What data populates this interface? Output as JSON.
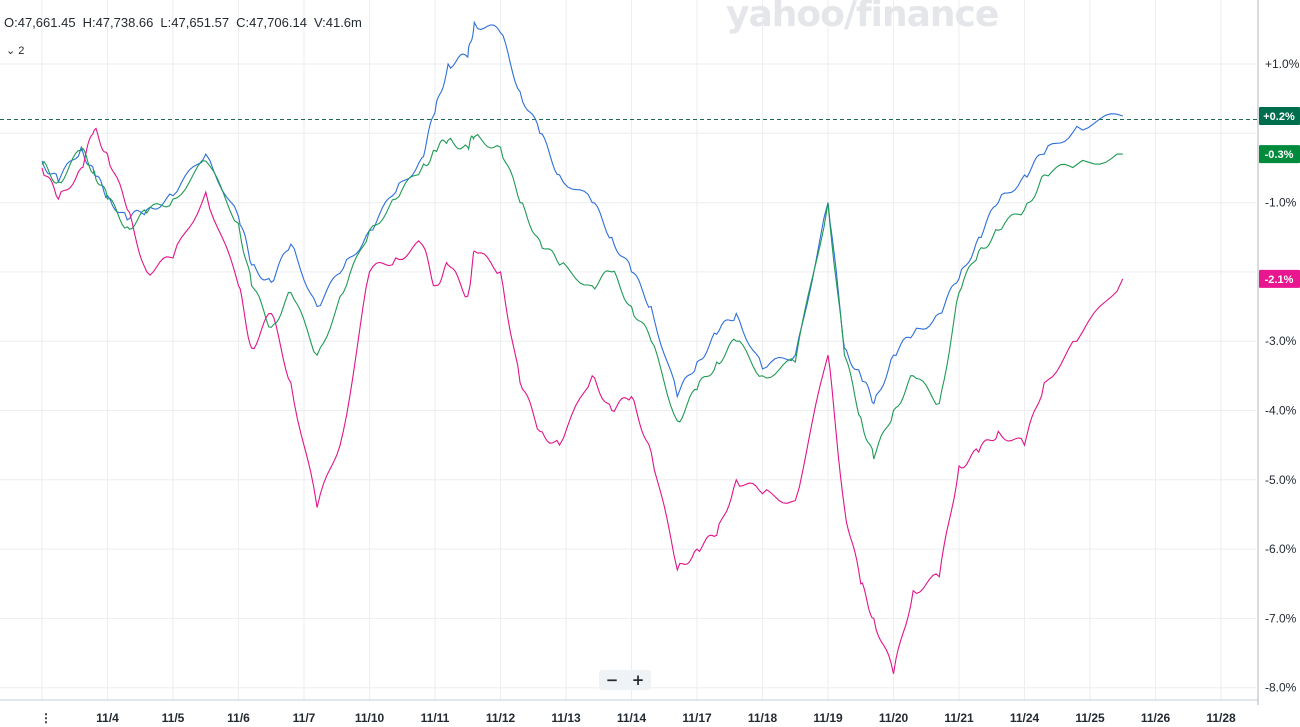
{
  "header": {
    "open": "O:47,661.45",
    "high": "H:47,738.66",
    "low": "L:47,651.57",
    "close": "C:47,706.14",
    "volume": "V:41.6m",
    "legend_toggle": "⌄ 2",
    "watermark": "yahoo/finance"
  },
  "zoom": {
    "minus": "−",
    "plus": "+"
  },
  "chart_data": {
    "type": "line",
    "ylim": [
      -8.2,
      1.7
    ],
    "y_ticks": [
      1.0,
      -1.0,
      -3.0,
      -4.0,
      -5.0,
      -6.0,
      -7.0,
      -8.0
    ],
    "y_tick_labels": [
      "+1.0%",
      "-1.0%",
      "-3.0%",
      "-4.0%",
      "-5.0%",
      "-6.0%",
      "-7.0%",
      "-8.0%"
    ],
    "x_tick_labels": [
      "11/4",
      "11/5",
      "11/6",
      "11/7",
      "11/10",
      "11/11",
      "11/12",
      "11/13",
      "11/14",
      "11/17",
      "11/18",
      "11/19",
      "11/20",
      "11/21",
      "11/24",
      "11/25",
      "11/26",
      "11/28"
    ],
    "reference_level": 0.2,
    "series": [
      {
        "color": "#2e6fd9",
        "end_label": "+0.2%",
        "badge_color": "#006d4d",
        "points": [
          [
            0,
            -0.4
          ],
          [
            0.25,
            -0.7
          ],
          [
            0.6,
            -0.2
          ],
          [
            0.8,
            -0.6
          ],
          [
            1.0,
            -0.9
          ],
          [
            1.3,
            -1.25
          ],
          [
            1.6,
            -1.1
          ],
          [
            2.0,
            -0.9
          ],
          [
            2.5,
            -0.3
          ],
          [
            3.0,
            -1.2
          ],
          [
            3.2,
            -1.9
          ],
          [
            3.5,
            -2.15
          ],
          [
            3.8,
            -1.6
          ],
          [
            4.2,
            -2.5
          ],
          [
            4.6,
            -1.95
          ],
          [
            5.0,
            -1.4
          ],
          [
            5.4,
            -0.85
          ],
          [
            5.8,
            -0.35
          ],
          [
            6.0,
            0.3
          ],
          [
            6.2,
            1.0
          ],
          [
            6.5,
            1.1
          ],
          [
            6.6,
            1.6
          ],
          [
            7.0,
            1.45
          ],
          [
            7.3,
            0.6
          ],
          [
            7.6,
            0.0
          ],
          [
            7.9,
            -0.6
          ],
          [
            8.4,
            -1.0
          ],
          [
            8.7,
            -1.5
          ],
          [
            9.0,
            -2.0
          ],
          [
            9.3,
            -2.5
          ],
          [
            9.7,
            -3.8
          ],
          [
            10.0,
            -3.3
          ],
          [
            10.3,
            -2.9
          ],
          [
            10.6,
            -2.6
          ],
          [
            11.0,
            -3.4
          ],
          [
            11.5,
            -3.2
          ],
          [
            12.0,
            -1.0
          ],
          [
            12.25,
            -3.1
          ],
          [
            12.5,
            -3.5
          ],
          [
            12.7,
            -3.9
          ],
          [
            13.0,
            -3.2
          ],
          [
            13.3,
            -2.9
          ],
          [
            13.7,
            -2.6
          ],
          [
            14.0,
            -2.1
          ],
          [
            14.3,
            -1.5
          ],
          [
            14.6,
            -1.0
          ],
          [
            15.0,
            -0.6
          ],
          [
            15.3,
            -0.3
          ],
          [
            15.8,
            0.1
          ],
          [
            16.5,
            0.25
          ]
        ]
      },
      {
        "color": "#1f9a55",
        "end_label": "-0.3%",
        "badge_color": "#008a3c",
        "points": [
          [
            0,
            -0.45
          ],
          [
            0.25,
            -0.7
          ],
          [
            0.6,
            -0.25
          ],
          [
            0.8,
            -0.55
          ],
          [
            1.0,
            -0.95
          ],
          [
            1.3,
            -1.35
          ],
          [
            1.6,
            -1.15
          ],
          [
            2.0,
            -0.95
          ],
          [
            2.5,
            -0.4
          ],
          [
            3.0,
            -1.3
          ],
          [
            3.2,
            -2.2
          ],
          [
            3.5,
            -2.8
          ],
          [
            3.8,
            -2.3
          ],
          [
            4.2,
            -3.2
          ],
          [
            4.6,
            -2.3
          ],
          [
            5.0,
            -1.4
          ],
          [
            5.4,
            -0.95
          ],
          [
            5.8,
            -0.5
          ],
          [
            6.0,
            -0.25
          ],
          [
            6.2,
            -0.1
          ],
          [
            6.5,
            -0.2
          ],
          [
            6.6,
            -0.05
          ],
          [
            7.0,
            -0.2
          ],
          [
            7.3,
            -1.0
          ],
          [
            7.6,
            -1.55
          ],
          [
            7.9,
            -1.9
          ],
          [
            8.4,
            -2.2
          ],
          [
            8.7,
            -2.0
          ],
          [
            9.0,
            -2.5
          ],
          [
            9.3,
            -3.0
          ],
          [
            9.7,
            -4.15
          ],
          [
            10.0,
            -3.7
          ],
          [
            10.3,
            -3.3
          ],
          [
            10.6,
            -3.0
          ],
          [
            11.0,
            -3.5
          ],
          [
            11.5,
            -3.3
          ],
          [
            12.0,
            -1.0
          ],
          [
            12.25,
            -3.2
          ],
          [
            12.5,
            -4.1
          ],
          [
            12.7,
            -4.7
          ],
          [
            13.0,
            -4.0
          ],
          [
            13.3,
            -3.5
          ],
          [
            13.7,
            -3.9
          ],
          [
            14.0,
            -2.3
          ],
          [
            14.3,
            -1.7
          ],
          [
            14.6,
            -1.4
          ],
          [
            15.0,
            -1.1
          ],
          [
            15.3,
            -0.6
          ],
          [
            15.8,
            -0.45
          ],
          [
            16.5,
            -0.3
          ]
        ]
      },
      {
        "color": "#e0148a",
        "end_label": "-2.1%",
        "badge_color": "#e8168f",
        "points": [
          [
            0,
            -0.5
          ],
          [
            0.25,
            -0.95
          ],
          [
            0.6,
            -0.5
          ],
          [
            0.8,
            0.05
          ],
          [
            1.0,
            -0.3
          ],
          [
            1.3,
            -1.1
          ],
          [
            1.6,
            -2.0
          ],
          [
            2.0,
            -1.8
          ],
          [
            2.5,
            -0.85
          ],
          [
            3.0,
            -2.2
          ],
          [
            3.2,
            -3.1
          ],
          [
            3.5,
            -2.6
          ],
          [
            3.8,
            -3.6
          ],
          [
            4.2,
            -5.4
          ],
          [
            4.6,
            -4.3
          ],
          [
            5.0,
            -2.0
          ],
          [
            5.4,
            -1.8
          ],
          [
            5.8,
            -1.6
          ],
          [
            6.0,
            -2.2
          ],
          [
            6.2,
            -1.9
          ],
          [
            6.5,
            -2.35
          ],
          [
            6.6,
            -1.7
          ],
          [
            7.0,
            -2.0
          ],
          [
            7.3,
            -3.6
          ],
          [
            7.6,
            -4.3
          ],
          [
            7.9,
            -4.5
          ],
          [
            8.4,
            -3.5
          ],
          [
            8.7,
            -4.0
          ],
          [
            9.0,
            -3.8
          ],
          [
            9.3,
            -4.6
          ],
          [
            9.7,
            -6.3
          ],
          [
            10.0,
            -6.0
          ],
          [
            10.3,
            -5.8
          ],
          [
            10.6,
            -5.0
          ],
          [
            11.0,
            -5.2
          ],
          [
            11.5,
            -5.3
          ],
          [
            12.0,
            -3.2
          ],
          [
            12.25,
            -5.4
          ],
          [
            12.5,
            -6.5
          ],
          [
            12.7,
            -7.0
          ],
          [
            13.0,
            -7.8
          ],
          [
            13.3,
            -6.6
          ],
          [
            13.7,
            -6.4
          ],
          [
            14.0,
            -4.8
          ],
          [
            14.3,
            -4.6
          ],
          [
            14.6,
            -4.3
          ],
          [
            15.0,
            -4.5
          ],
          [
            15.3,
            -3.6
          ],
          [
            15.8,
            -3.0
          ],
          [
            16.5,
            -2.1
          ]
        ]
      }
    ]
  }
}
